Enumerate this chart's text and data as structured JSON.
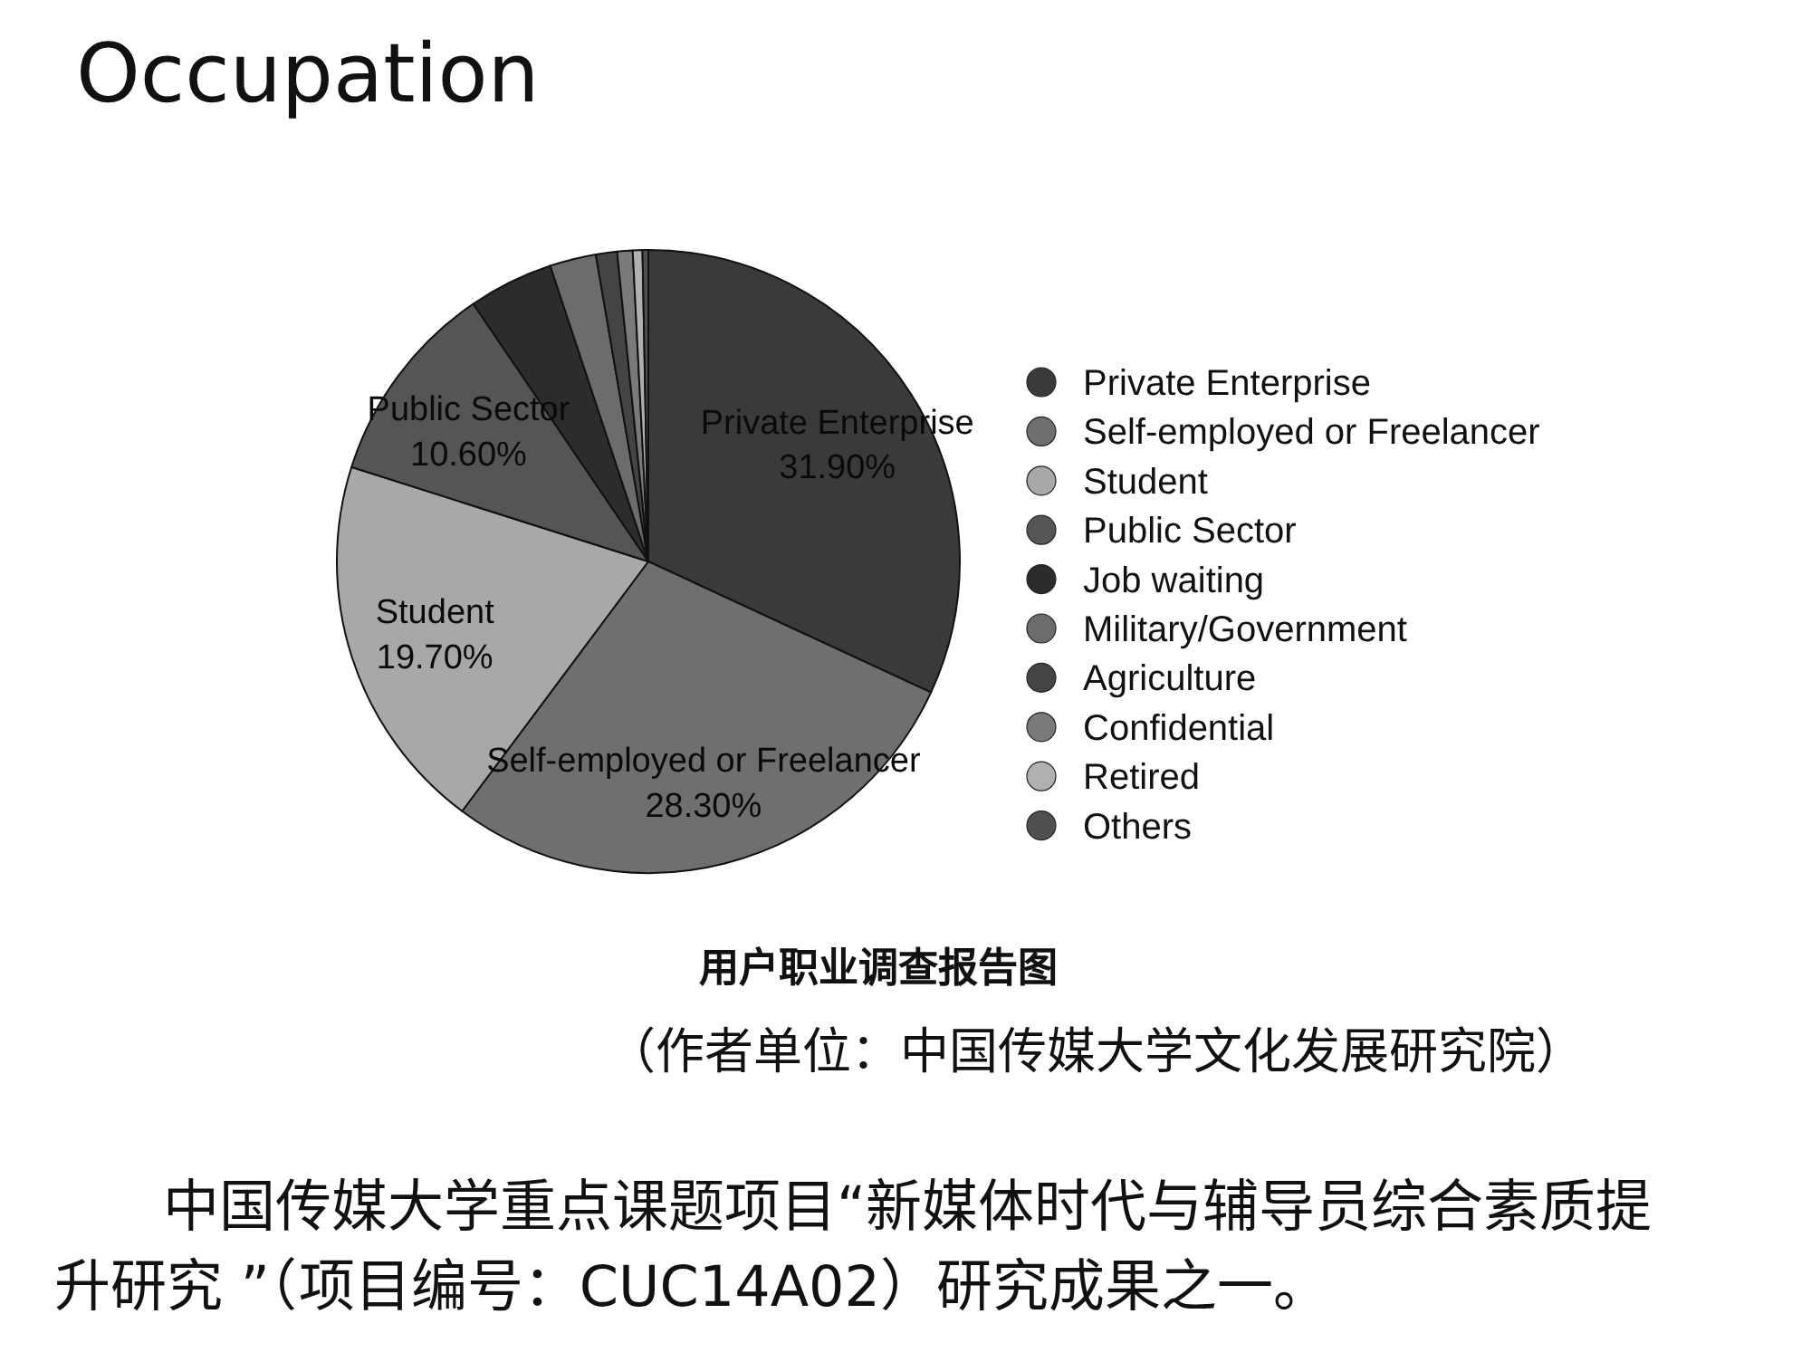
{
  "chart_data": {
    "type": "pie",
    "title": "Occupation",
    "categories": [
      "Private Enterprise",
      "Self-employed or Freelancer",
      "Student",
      "Public Sector",
      "Job waiting",
      "Military/Government",
      "Agriculture",
      "Confidential",
      "Retired",
      "Others"
    ],
    "values": [
      31.9,
      28.3,
      19.7,
      10.6,
      4.4,
      2.4,
      1.1,
      0.8,
      0.5,
      0.3
    ],
    "colors": [
      "#3a3a3a",
      "#6f6f6f",
      "#a8a8a8",
      "#555555",
      "#2c2c2c",
      "#6c6c6c",
      "#444444",
      "#7a7a7a",
      "#b0b0b0",
      "#505050"
    ],
    "value_labels": [
      "31.90%",
      "28.30%",
      "19.70%",
      "10.60%",
      null,
      null,
      null,
      null,
      null,
      null
    ],
    "legend": "right",
    "annotations": [
      "用户职业调查报告图",
      "（作者单位：中国传媒大学文化发展研究院）",
      "中国传媒大学重点课题项目“新媒体时代与辅导员综合素质提升研究 ”（项目编号：CUC14A02）研究成果之一。"
    ]
  }
}
